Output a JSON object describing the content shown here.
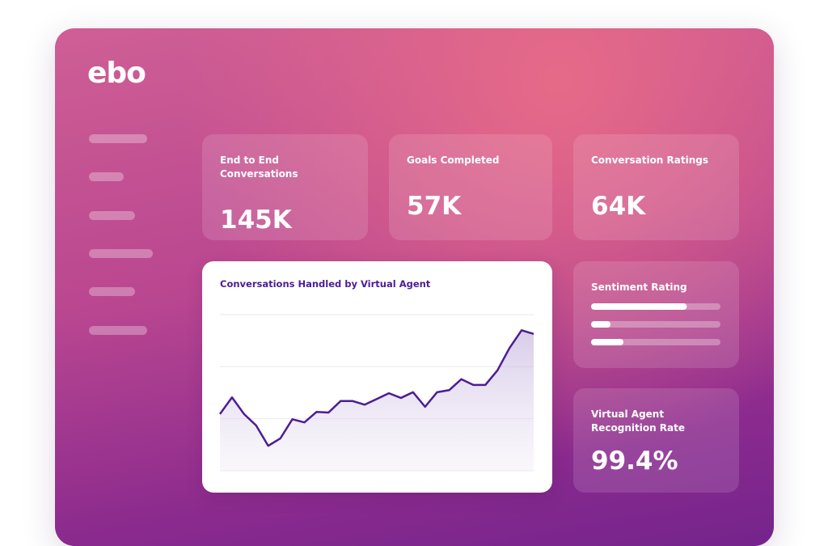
{
  "logo": "ebo",
  "stats": [
    {
      "label": "End to End Conversations",
      "value": "145K"
    },
    {
      "label": "Goals Completed",
      "value": "57K"
    },
    {
      "label": "Conversation Ratings",
      "value": "64K"
    }
  ],
  "sentiment": {
    "label": "Sentiment Rating",
    "values": [
      74,
      15,
      25
    ],
    "lim": [
      0,
      100
    ]
  },
  "recognition": {
    "label": "Virtual Agent Recognition Rate",
    "value": "99.4%"
  },
  "chart_data": {
    "type": "line",
    "title": "Conversations Handled by Virtual Agent",
    "x": [
      0,
      1,
      2,
      3,
      4,
      5,
      6,
      7,
      8,
      9,
      10,
      11,
      12,
      13,
      14,
      15,
      16,
      17,
      18,
      19,
      20,
      21,
      22,
      23,
      24,
      25,
      26
    ],
    "xlim": [
      0,
      26
    ],
    "series": [
      {
        "color": "#4c1d95",
        "values": [
          1.09,
          1.41,
          1.09,
          0.87,
          0.48,
          0.62,
          0.99,
          0.93,
          1.13,
          1.12,
          1.34,
          1.34,
          1.27,
          1.38,
          1.49,
          1.4,
          1.51,
          1.23,
          1.51,
          1.55,
          1.76,
          1.65,
          1.65,
          1.93,
          2.36,
          2.7,
          2.63
        ]
      }
    ],
    "ylim": [
      0,
      3
    ],
    "yticks": [
      0,
      1,
      2,
      3
    ],
    "grid": true
  }
}
